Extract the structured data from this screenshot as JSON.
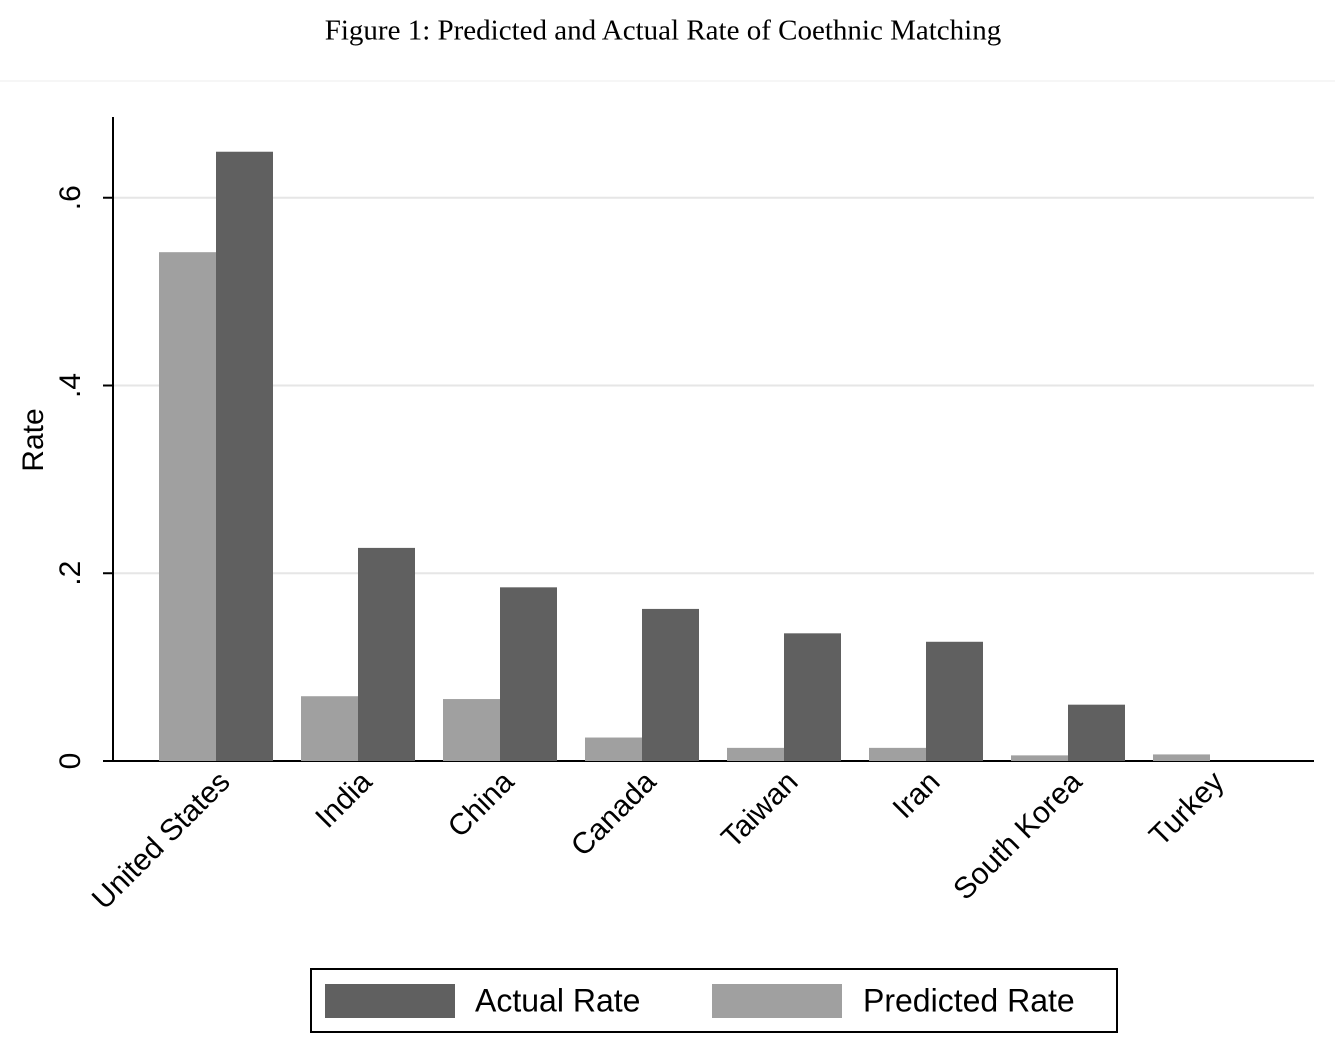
{
  "chart_data": {
    "type": "bar",
    "title": "Figure 1: Predicted and Actual Rate of Coethnic Matching",
    "y_label": "Rate",
    "categories": [
      "United States",
      "India",
      "China",
      "Canada",
      "Taiwan",
      "Iran",
      "South Korea",
      "Turkey"
    ],
    "series": [
      {
        "name": "Actual Rate",
        "color": "#606060",
        "values": [
          0.649,
          0.227,
          0.185,
          0.162,
          0.136,
          0.127,
          0.06,
          0
        ]
      },
      {
        "name": "Predicted Rate",
        "color": "#a0a0a0",
        "values": [
          0.542,
          0.069,
          0.066,
          0.025,
          0.014,
          0.014,
          0.006,
          0.007
        ]
      }
    ],
    "ylim": [
      0,
      0.686
    ],
    "yticks": [
      0,
      {
        "value": 0.2,
        "label": ".2"
      },
      {
        "value": 0.4,
        "label": ".4"
      },
      {
        "value": 0.6,
        "label": ".6"
      }
    ],
    "grid": true
  }
}
